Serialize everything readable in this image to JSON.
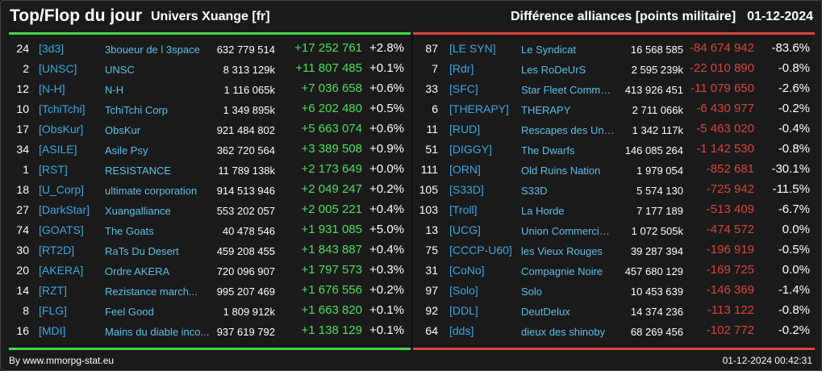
{
  "header": {
    "title": "Top/Flop du jour",
    "universe": "Univers Xuange [fr]",
    "subtitle": "Différence alliances [points militaire]",
    "date": "01-12-2024"
  },
  "colors": {
    "positive": "#4be05a",
    "negative": "#e0413a",
    "tag": "#3aa8e8",
    "name": "#5bc0ea"
  },
  "top": [
    {
      "rank": "24",
      "tag": "[3d3]",
      "name": "3boueur de l 3space",
      "points": "632 779 514",
      "diff": "+17 252 761",
      "pct": "+2.8%"
    },
    {
      "rank": "2",
      "tag": "[UNSC]",
      "name": "UNSC",
      "points": "8 313 129k",
      "diff": "+11 807 485",
      "pct": "+0.1%"
    },
    {
      "rank": "12",
      "tag": "[N-H]",
      "name": "N-H",
      "points": "1 116 065k",
      "diff": "+7 036 658",
      "pct": "+0.6%"
    },
    {
      "rank": "10",
      "tag": "[TchiTchi]",
      "name": "TchiTchi Corp",
      "points": "1 349 895k",
      "diff": "+6 202 480",
      "pct": "+0.5%"
    },
    {
      "rank": "17",
      "tag": "[ObsKur]",
      "name": "ObsKur",
      "points": "921 484 802",
      "diff": "+5 663 074",
      "pct": "+0.6%"
    },
    {
      "rank": "34",
      "tag": "[ASILE]",
      "name": "Asile Psy",
      "points": "362 720 564",
      "diff": "+3 389 508",
      "pct": "+0.9%"
    },
    {
      "rank": "1",
      "tag": "[RST]",
      "name": "RESISTANCE",
      "points": "11 789 138k",
      "diff": "+2 173 649",
      "pct": "+0.0%"
    },
    {
      "rank": "18",
      "tag": "[U_Corp]",
      "name": "ultimate corporation",
      "points": "914 513 946",
      "diff": "+2 049 247",
      "pct": "+0.2%"
    },
    {
      "rank": "27",
      "tag": "[DarkStar]",
      "name": "Xuangalliance",
      "points": "553 202 057",
      "diff": "+2 005 221",
      "pct": "+0.4%"
    },
    {
      "rank": "74",
      "tag": "[GOATS]",
      "name": "The Goats",
      "points": "40 478 546",
      "diff": "+1 931 085",
      "pct": "+5.0%"
    },
    {
      "rank": "30",
      "tag": "[RT2D]",
      "name": "RaTs Du Desert",
      "points": "459 208 455",
      "diff": "+1 843 887",
      "pct": "+0.4%"
    },
    {
      "rank": "20",
      "tag": "[AKERA]",
      "name": "Ordre AKERA",
      "points": "720 096 907",
      "diff": "+1 797 573",
      "pct": "+0.3%"
    },
    {
      "rank": "14",
      "tag": "[RZT]",
      "name": "Rezistance march...",
      "points": "995 207 469",
      "diff": "+1 676 556",
      "pct": "+0.2%"
    },
    {
      "rank": "8",
      "tag": "[FLG]",
      "name": "Feel Good",
      "points": "1 809 912k",
      "diff": "+1 663 820",
      "pct": "+0.1%"
    },
    {
      "rank": "16",
      "tag": "[MDI]",
      "name": "Mains du diable inco...",
      "points": "937 619 792",
      "diff": "+1 138 129",
      "pct": "+0.1%"
    }
  ],
  "flop": [
    {
      "rank": "87",
      "tag": "[LE SYN]",
      "name": "Le Syndicat",
      "points": "16 568 585",
      "diff": "-84 674 942",
      "pct": "-83.6%"
    },
    {
      "rank": "7",
      "tag": "[Rdr]",
      "name": "Les RoDeUrS",
      "points": "2 595 239k",
      "diff": "-22 010 890",
      "pct": "-0.8%"
    },
    {
      "rank": "33",
      "tag": "[SFC]",
      "name": "Star Fleet Command",
      "points": "413 926 451",
      "diff": "-11 079 650",
      "pct": "-2.6%"
    },
    {
      "rank": "6",
      "tag": "[THERAPY]",
      "name": "THERAPY",
      "points": "2 711 066k",
      "diff": "-6 430 977",
      "pct": "-0.2%"
    },
    {
      "rank": "11",
      "tag": "[RUD]",
      "name": "Rescapes des Univ...",
      "points": "1 342 117k",
      "diff": "-5 463 020",
      "pct": "-0.4%"
    },
    {
      "rank": "51",
      "tag": "[DIGGY]",
      "name": "The Dwarfs",
      "points": "146 085 264",
      "diff": "-1 142 530",
      "pct": "-0.8%"
    },
    {
      "rank": "111",
      "tag": "[ORN]",
      "name": "Old Ruins Nation",
      "points": "1 979 054",
      "diff": "-852 681",
      "pct": "-30.1%"
    },
    {
      "rank": "105",
      "tag": "[S33D]",
      "name": "S33D",
      "points": "5 574 130",
      "diff": "-725 942",
      "pct": "-11.5%"
    },
    {
      "rank": "103",
      "tag": "[Troll]",
      "name": "La Horde",
      "points": "7 177 189",
      "diff": "-513 409",
      "pct": "-6.7%"
    },
    {
      "rank": "13",
      "tag": "[UCG]",
      "name": "Union Commerciale...",
      "points": "1 072 505k",
      "diff": "-474 572",
      "pct": "0.0%"
    },
    {
      "rank": "75",
      "tag": "[CCCP-U60]",
      "name": "les Vieux Rouges",
      "points": "39 287 394",
      "diff": "-196 919",
      "pct": "-0.5%"
    },
    {
      "rank": "31",
      "tag": "[CoNo]",
      "name": "Compagnie Noire",
      "points": "457 680 129",
      "diff": "-169 725",
      "pct": "0.0%"
    },
    {
      "rank": "97",
      "tag": "[Solo]",
      "name": "Solo",
      "points": "10 453 639",
      "diff": "-146 369",
      "pct": "-1.4%"
    },
    {
      "rank": "92",
      "tag": "[DDL]",
      "name": "DeutDelux",
      "points": "14 374 236",
      "diff": "-113 122",
      "pct": "-0.8%"
    },
    {
      "rank": "64",
      "tag": "[dds]",
      "name": "dieux des shinoby",
      "points": "68 269 456",
      "diff": "-102 772",
      "pct": "-0.2%"
    }
  ],
  "footer": {
    "credit": "By www.mmorpg-stat.eu",
    "timestamp": "01-12-2024 00:42:31"
  }
}
